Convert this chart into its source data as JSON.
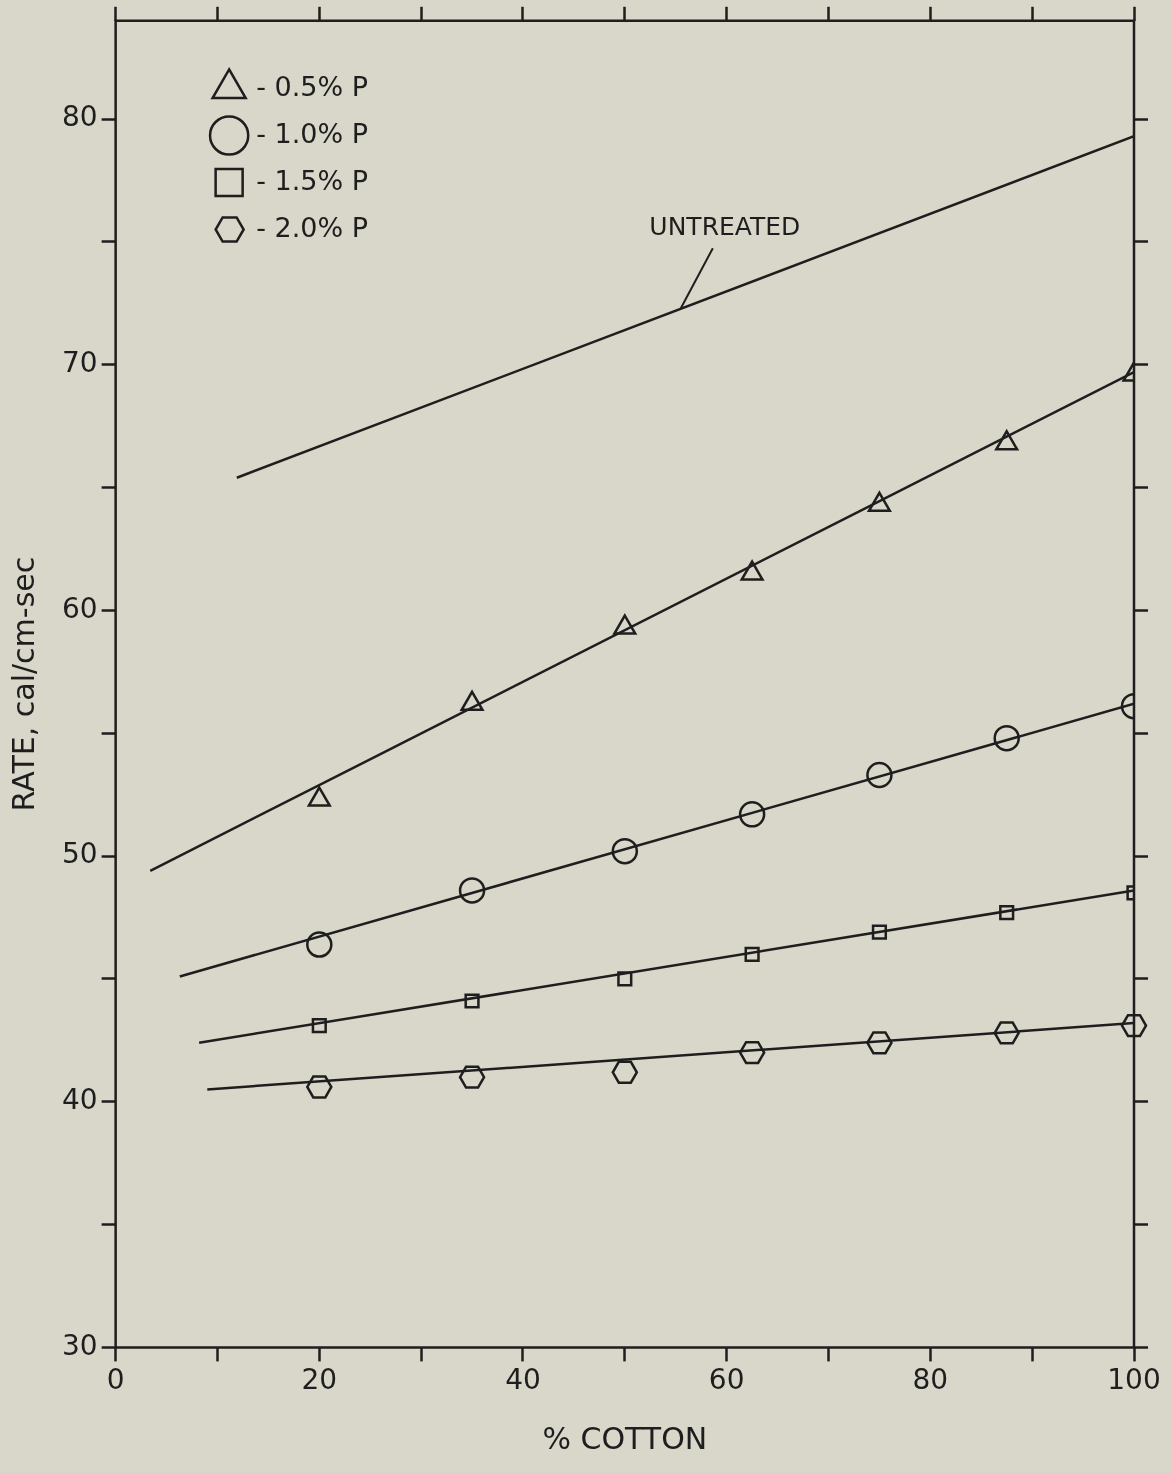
{
  "chart_data": {
    "type": "scatter",
    "xlabel": "% COTTON",
    "ylabel": "RATE, cal/cm-sec",
    "xlim": [
      0,
      100
    ],
    "ylim": [
      30,
      84
    ],
    "xticks": [
      0,
      {
        "value": 10,
        "label": null
      },
      20,
      {
        "value": 30,
        "label": null
      },
      40,
      {
        "value": 50,
        "label": null
      },
      60,
      {
        "value": 70,
        "label": null
      },
      80,
      {
        "value": 90,
        "label": null
      },
      100
    ],
    "yticks": [
      30,
      {
        "value": 35,
        "label": null
      },
      40,
      {
        "value": 45,
        "label": null
      },
      50,
      {
        "value": 55,
        "label": null
      },
      60,
      {
        "value": 65,
        "label": null
      },
      70,
      {
        "value": 75,
        "label": null
      },
      80
    ],
    "legend": "top left",
    "annotations": [
      {
        "text": "UNTREATED",
        "x": 55.5,
        "y": 72.3
      }
    ],
    "series": [
      {
        "name": "- 0.5% P",
        "marker": "triangle",
        "color": "#1e1e1e",
        "x": [
          20,
          35,
          50,
          62.5,
          75,
          87.5,
          100
        ],
        "values": [
          52.3,
          56.2,
          59.3,
          61.5,
          64.3,
          66.8,
          69.6
        ]
      },
      {
        "name": "- 1.0% P",
        "marker": "circle",
        "color": "#1e1e1e",
        "x": [
          20,
          35,
          50,
          62.5,
          75,
          87.5,
          100
        ],
        "values": [
          46.4,
          48.6,
          50.2,
          51.7,
          53.3,
          54.8,
          56.1
        ]
      },
      {
        "name": "- 1.5% P",
        "marker": "square",
        "color": "#1e1e1e",
        "x": [
          20,
          35,
          50,
          62.5,
          75,
          87.5,
          100
        ],
        "values": [
          43.1,
          44.1,
          45.0,
          46.0,
          46.9,
          47.7,
          48.5
        ]
      },
      {
        "name": "- 2.0% P",
        "color": "#1e1e1e",
        "x": [
          20,
          35,
          50,
          62.5,
          75,
          87.5,
          100
        ],
        "values": [
          40.6,
          41.0,
          41.2,
          42.0,
          42.4,
          42.8,
          43.1
        ]
      },
      {
        "type": "line",
        "marker": "none",
        "color": "#1e1e1e",
        "x": [
          11.9,
          100
        ],
        "values": [
          65.4,
          79.3
        ]
      },
      {
        "type": "line",
        "marker": "none",
        "color": "#1e1e1e",
        "x": [
          3.4,
          100
        ],
        "values": [
          49.4,
          69.7
        ]
      },
      {
        "type": "line",
        "marker": "none",
        "color": "#1e1e1e",
        "x": [
          6.3,
          100
        ],
        "values": [
          45.1,
          56.2
        ]
      },
      {
        "type": "line",
        "marker": "none",
        "color": "#1e1e1e",
        "x": [
          8.2,
          100
        ],
        "values": [
          42.4,
          48.6
        ]
      },
      {
        "type": "line",
        "marker": "none",
        "color": "#1e1e1e",
        "x": [
          9.0,
          100
        ],
        "values": [
          40.5,
          43.2
        ]
      }
    ]
  }
}
